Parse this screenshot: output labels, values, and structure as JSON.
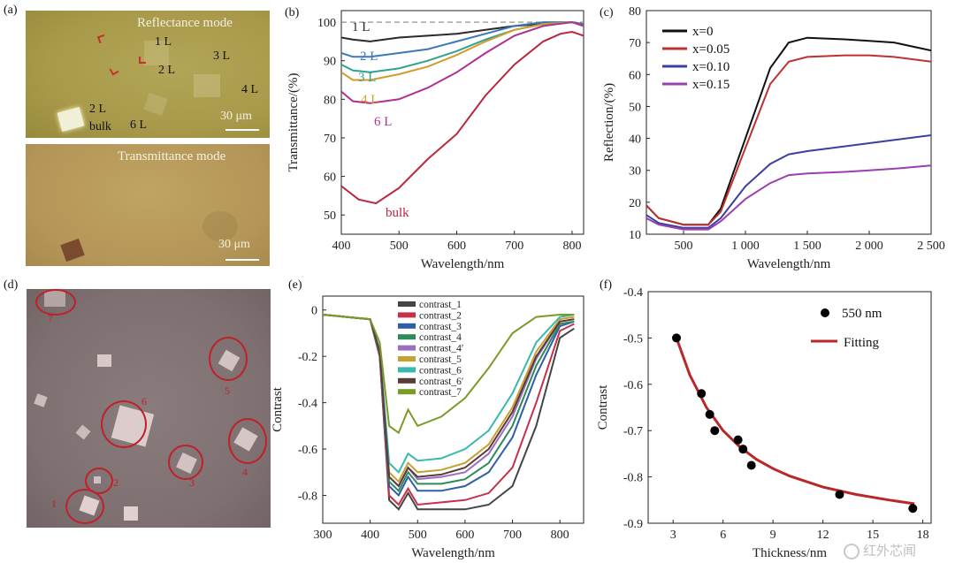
{
  "panels": {
    "a": {
      "tag": "(a)",
      "top_mode": "Reflectance mode",
      "bottom_mode": "Transmittance mode",
      "labels": [
        "1 L",
        "2 L",
        "3 L",
        "4 L",
        "2 L",
        "6 L",
        "bulk"
      ],
      "scale_top": "30 μm",
      "scale_bottom": "30 μm"
    },
    "d": {
      "tag": "(d)",
      "region_numbers": [
        "1",
        "2",
        "3",
        "4",
        "5",
        "6",
        "7"
      ]
    }
  },
  "watermark": "红外芯闻",
  "chart_data": [
    {
      "id": "b",
      "tag": "(b)",
      "type": "line",
      "xlabel": "Wavelength/nm",
      "ylabel": "Transmittance/(%)",
      "xlim": [
        400,
        820
      ],
      "ylim": [
        45,
        103
      ],
      "xticks": [
        400,
        500,
        600,
        700,
        800
      ],
      "yticks": [
        50,
        60,
        70,
        80,
        90,
        100
      ],
      "reference_line": 100,
      "series": [
        {
          "name": "1 L",
          "color": "#2a2a2a",
          "x": [
            400,
            420,
            450,
            500,
            550,
            600,
            650,
            700,
            750,
            800,
            820
          ],
          "y": [
            96,
            95.5,
            95,
            96,
            96.5,
            97,
            98,
            99,
            99.5,
            100,
            99.5
          ]
        },
        {
          "name": "2 L",
          "color": "#3b78b8",
          "x": [
            400,
            420,
            450,
            500,
            550,
            600,
            650,
            700,
            750,
            800,
            820
          ],
          "y": [
            92,
            91,
            91,
            92,
            93,
            95,
            97,
            99,
            100,
            100,
            99.5
          ]
        },
        {
          "name": "3 L",
          "color": "#2fa38e",
          "x": [
            400,
            420,
            450,
            500,
            550,
            600,
            650,
            700,
            750,
            800,
            820
          ],
          "y": [
            89,
            87.5,
            87,
            88,
            90,
            92.5,
            95.5,
            98,
            99.5,
            100,
            99
          ]
        },
        {
          "name": "4 L",
          "color": "#d49a2a",
          "x": [
            400,
            420,
            450,
            500,
            550,
            600,
            650,
            700,
            750,
            800,
            820
          ],
          "y": [
            87,
            85,
            85,
            86.5,
            88.5,
            91.5,
            95,
            98,
            99.5,
            100,
            99
          ]
        },
        {
          "name": "6 L",
          "color": "#b0308f",
          "x": [
            400,
            420,
            450,
            500,
            550,
            600,
            650,
            700,
            750,
            800,
            820
          ],
          "y": [
            82,
            79.5,
            79,
            80,
            83,
            87,
            92,
            96.5,
            99,
            100,
            99
          ]
        },
        {
          "name": "bulk",
          "color": "#b8283c",
          "x": [
            400,
            430,
            460,
            500,
            550,
            600,
            650,
            700,
            750,
            780,
            800,
            820
          ],
          "y": [
            57.5,
            54,
            53,
            57,
            64.5,
            71,
            81,
            89,
            95,
            97,
            97.5,
            96.5
          ]
        }
      ]
    },
    {
      "id": "c",
      "tag": "(c)",
      "type": "line",
      "xlabel": "Wavelength/nm",
      "ylabel": "Reflection/(%)",
      "xlim": [
        200,
        2500
      ],
      "ylim": [
        10,
        80
      ],
      "xticks": [
        500,
        1000,
        1500,
        2000,
        2500
      ],
      "xtick_labels": [
        "500",
        "1 000",
        "1 500",
        "2 000",
        "2 500"
      ],
      "yticks": [
        10,
        20,
        30,
        40,
        50,
        60,
        70,
        80
      ],
      "legend": "top-left",
      "series": [
        {
          "name": "x=0",
          "color": "#111111",
          "x": [
            200,
            300,
            500,
            700,
            800,
            1000,
            1200,
            1350,
            1500,
            1800,
            2000,
            2200,
            2500
          ],
          "y": [
            19,
            15,
            13,
            13,
            18,
            40,
            62,
            70,
            71.5,
            71,
            70.5,
            70,
            67.5
          ]
        },
        {
          "name": "x=0.05",
          "color": "#c03030",
          "x": [
            200,
            300,
            500,
            700,
            800,
            1000,
            1200,
            1350,
            1500,
            1800,
            2000,
            2200,
            2500
          ],
          "y": [
            19,
            15,
            13,
            13,
            17,
            37,
            57,
            64,
            65.5,
            66,
            66,
            65.5,
            64
          ]
        },
        {
          "name": "x=0.10",
          "color": "#3a3fa0",
          "x": [
            200,
            300,
            500,
            700,
            800,
            1000,
            1200,
            1350,
            1500,
            1800,
            2000,
            2200,
            2500
          ],
          "y": [
            16,
            13.5,
            12,
            12,
            15,
            25,
            32,
            35,
            36,
            37.5,
            38.5,
            39.5,
            41
          ]
        },
        {
          "name": "x=0.15",
          "color": "#9a3fb0",
          "x": [
            200,
            300,
            500,
            700,
            800,
            1000,
            1200,
            1350,
            1500,
            1800,
            2000,
            2200,
            2500
          ],
          "y": [
            15,
            13,
            11.5,
            11.5,
            14,
            21,
            26,
            28.5,
            29,
            29.5,
            30,
            30.5,
            31.5
          ]
        }
      ]
    },
    {
      "id": "e",
      "tag": "(e)",
      "type": "line",
      "xlabel": "Wavelength/nm",
      "ylabel": "Contrast",
      "xlim": [
        300,
        850
      ],
      "ylim": [
        -0.92,
        0.06
      ],
      "xticks": [
        300,
        400,
        500,
        600,
        700,
        800
      ],
      "yticks": [
        0,
        -0.2,
        -0.4,
        -0.6,
        -0.8
      ],
      "ytick_labels": [
        "0",
        "-0.2",
        "-0.4",
        "-0.6",
        "-0.8"
      ],
      "legend": "top-center",
      "series": [
        {
          "name": "contrast_1",
          "color": "#444444",
          "x": [
            300,
            350,
            400,
            420,
            440,
            460,
            480,
            500,
            550,
            600,
            650,
            700,
            750,
            800,
            830
          ],
          "y": [
            -0.02,
            -0.03,
            -0.04,
            -0.2,
            -0.82,
            -0.86,
            -0.79,
            -0.86,
            -0.86,
            -0.86,
            -0.84,
            -0.76,
            -0.5,
            -0.12,
            -0.08
          ]
        },
        {
          "name": "contrast_2",
          "color": "#c8304a",
          "x": [
            300,
            350,
            400,
            420,
            440,
            460,
            480,
            500,
            550,
            600,
            650,
            700,
            750,
            800,
            830
          ],
          "y": [
            -0.02,
            -0.03,
            -0.04,
            -0.2,
            -0.8,
            -0.84,
            -0.77,
            -0.84,
            -0.83,
            -0.82,
            -0.79,
            -0.68,
            -0.4,
            -0.09,
            -0.06
          ]
        },
        {
          "name": "contrast_3",
          "color": "#2f5fa8",
          "x": [
            300,
            350,
            400,
            420,
            440,
            460,
            480,
            500,
            550,
            600,
            650,
            700,
            750,
            800,
            830
          ],
          "y": [
            -0.02,
            -0.03,
            -0.04,
            -0.19,
            -0.76,
            -0.8,
            -0.72,
            -0.78,
            -0.78,
            -0.76,
            -0.7,
            -0.55,
            -0.28,
            -0.07,
            -0.05
          ]
        },
        {
          "name": "contrast_4",
          "color": "#2f8a5a",
          "x": [
            300,
            350,
            400,
            420,
            440,
            460,
            480,
            500,
            550,
            600,
            650,
            700,
            750,
            800,
            830
          ],
          "y": [
            -0.02,
            -0.03,
            -0.04,
            -0.19,
            -0.74,
            -0.78,
            -0.7,
            -0.75,
            -0.75,
            -0.73,
            -0.66,
            -0.5,
            -0.24,
            -0.06,
            -0.05
          ]
        },
        {
          "name": "contrast_4′",
          "color": "#9a6fc0",
          "x": [
            300,
            350,
            400,
            420,
            440,
            460,
            480,
            500,
            550,
            600,
            650,
            700,
            750,
            800,
            830
          ],
          "y": [
            -0.02,
            -0.03,
            -0.04,
            -0.18,
            -0.72,
            -0.76,
            -0.68,
            -0.73,
            -0.72,
            -0.7,
            -0.62,
            -0.46,
            -0.21,
            -0.05,
            -0.04
          ]
        },
        {
          "name": "contrast_5",
          "color": "#c8a030",
          "x": [
            300,
            350,
            400,
            420,
            440,
            460,
            480,
            500,
            550,
            600,
            650,
            700,
            750,
            800,
            830
          ],
          "y": [
            -0.02,
            -0.03,
            -0.04,
            -0.18,
            -0.7,
            -0.74,
            -0.66,
            -0.7,
            -0.69,
            -0.66,
            -0.58,
            -0.42,
            -0.18,
            -0.04,
            -0.03
          ]
        },
        {
          "name": "contrast_6",
          "color": "#3ab8b0",
          "x": [
            300,
            350,
            400,
            420,
            440,
            460,
            480,
            500,
            550,
            600,
            650,
            700,
            750,
            800,
            830
          ],
          "y": [
            -0.02,
            -0.03,
            -0.04,
            -0.17,
            -0.66,
            -0.7,
            -0.62,
            -0.65,
            -0.64,
            -0.6,
            -0.52,
            -0.36,
            -0.14,
            -0.03,
            -0.02
          ]
        },
        {
          "name": "contrast_6′",
          "color": "#5a3a3a",
          "x": [
            300,
            350,
            400,
            420,
            440,
            460,
            480,
            500,
            550,
            600,
            650,
            700,
            750,
            800,
            830
          ],
          "y": [
            -0.02,
            -0.03,
            -0.04,
            -0.18,
            -0.72,
            -0.76,
            -0.68,
            -0.72,
            -0.71,
            -0.68,
            -0.6,
            -0.44,
            -0.2,
            -0.05,
            -0.04
          ]
        },
        {
          "name": "contrast_7",
          "color": "#7a9a2a",
          "x": [
            300,
            350,
            400,
            420,
            440,
            460,
            480,
            500,
            550,
            600,
            650,
            700,
            750,
            800,
            830
          ],
          "y": [
            -0.02,
            -0.03,
            -0.04,
            -0.14,
            -0.5,
            -0.53,
            -0.43,
            -0.5,
            -0.46,
            -0.38,
            -0.25,
            -0.1,
            -0.03,
            -0.02,
            -0.02
          ]
        }
      ]
    },
    {
      "id": "f",
      "tag": "(f)",
      "type": "scatter",
      "xlabel": "Thickness/nm",
      "ylabel": "Contrast",
      "xlim": [
        1.5,
        18.5
      ],
      "ylim": [
        -0.9,
        -0.4
      ],
      "xticks": [
        3,
        6,
        9,
        12,
        15,
        18
      ],
      "yticks": [
        -0.4,
        -0.5,
        -0.6,
        -0.7,
        -0.8,
        -0.9
      ],
      "legend": "top-right",
      "points": {
        "name": "550 nm",
        "color": "#000000",
        "x": [
          3.2,
          4.7,
          5.2,
          5.5,
          6.9,
          7.2,
          7.7,
          13.0,
          17.4
        ],
        "y": [
          -0.5,
          -0.62,
          -0.665,
          -0.7,
          -0.72,
          -0.74,
          -0.775,
          -0.838,
          -0.868
        ]
      },
      "fit": {
        "name": "Fitting",
        "color": "#b82828",
        "x": [
          3.2,
          4,
          5,
          6,
          7,
          8,
          9,
          10,
          12,
          14,
          16,
          17.5
        ],
        "y": [
          -0.5,
          -0.58,
          -0.65,
          -0.7,
          -0.735,
          -0.762,
          -0.782,
          -0.798,
          -0.822,
          -0.838,
          -0.85,
          -0.858
        ]
      }
    }
  ]
}
